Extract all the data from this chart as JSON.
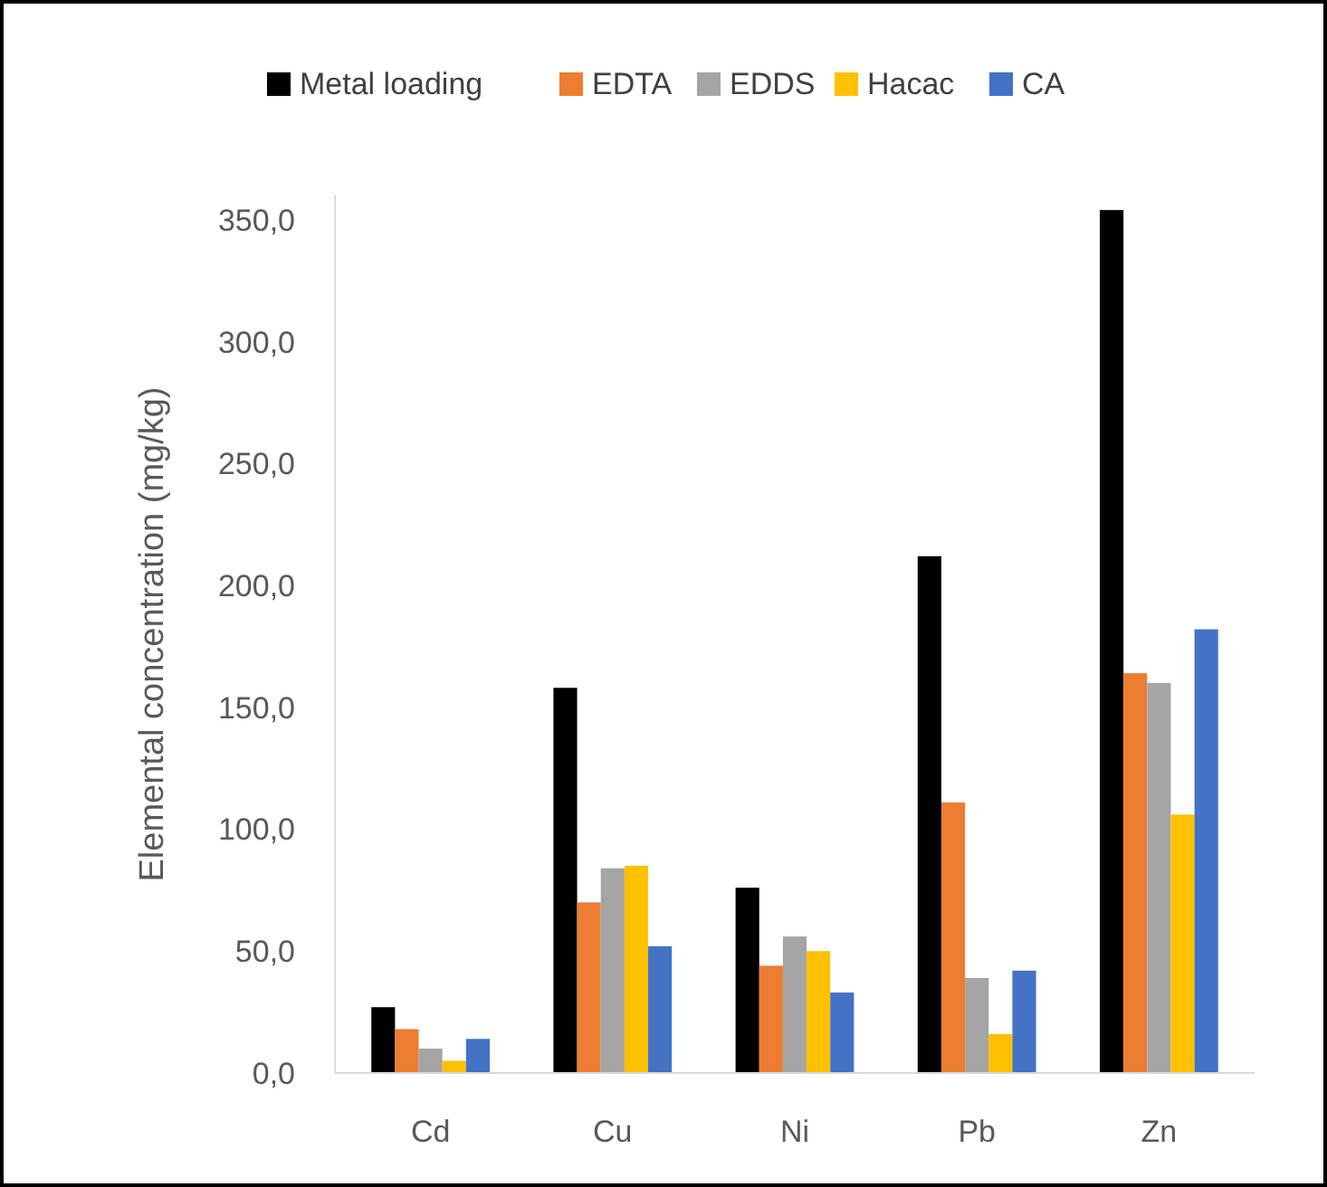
{
  "chart_data": {
    "type": "bar",
    "ylabel": "Elemental concentration (mg/kg)",
    "categories": [
      "Cd",
      "Cu",
      "Ni",
      "Pb",
      "Zn"
    ],
    "series": [
      {
        "name": "Metal loading",
        "color": "#000000",
        "values": [
          27,
          158,
          76,
          212,
          354
        ]
      },
      {
        "name": "EDTA",
        "color": "#ed7d31",
        "values": [
          18,
          70,
          44,
          111,
          164
        ]
      },
      {
        "name": "EDDS",
        "color": "#a5a5a5",
        "values": [
          10,
          84,
          56,
          39,
          160
        ]
      },
      {
        "name": "Hacac",
        "color": "#ffc000",
        "values": [
          5,
          85,
          50,
          16,
          106
        ]
      },
      {
        "name": "CA",
        "color": "#4472c4",
        "values": [
          14,
          52,
          33,
          42,
          182
        ]
      }
    ],
    "ylim": [
      0,
      360
    ],
    "yticks": [
      {
        "value": 0,
        "label": "0,0"
      },
      {
        "value": 50,
        "label": "50,0"
      },
      {
        "value": 100,
        "label": "100,0"
      },
      {
        "value": 150,
        "label": "150,0"
      },
      {
        "value": 200,
        "label": "200,0"
      },
      {
        "value": 250,
        "label": "250,0"
      },
      {
        "value": 300,
        "label": "300,0"
      },
      {
        "value": 350,
        "label": "350,0"
      }
    ],
    "grid": false,
    "legend": "top"
  }
}
